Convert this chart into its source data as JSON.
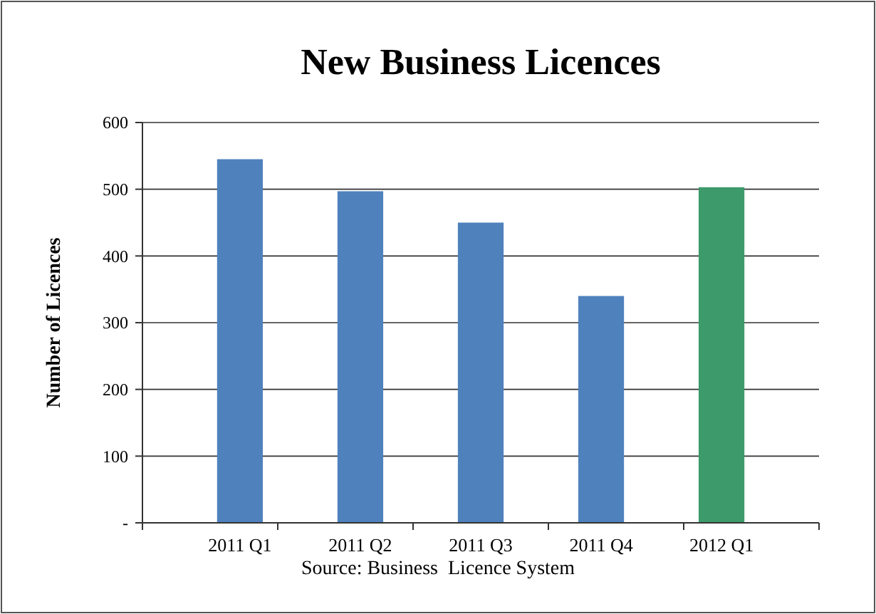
{
  "chart_data": {
    "type": "bar",
    "title": "New Business Licences",
    "ylabel": "Number of Licences",
    "categories": [
      "2011 Q1",
      "2011 Q2",
      "2011 Q3",
      "2011 Q4",
      "2012 Q1"
    ],
    "values": [
      545,
      497,
      450,
      340,
      503
    ],
    "colors": [
      "#4f81bd",
      "#4f81bd",
      "#4f81bd",
      "#4f81bd",
      "#3d9a6b"
    ],
    "ylim": [
      0,
      600
    ],
    "yticks": [
      {
        "value": 0,
        "label": "-"
      },
      100,
      200,
      300,
      400,
      500,
      600
    ],
    "grid": "y",
    "annotations": [
      "Source: Business  Licence System"
    ]
  }
}
